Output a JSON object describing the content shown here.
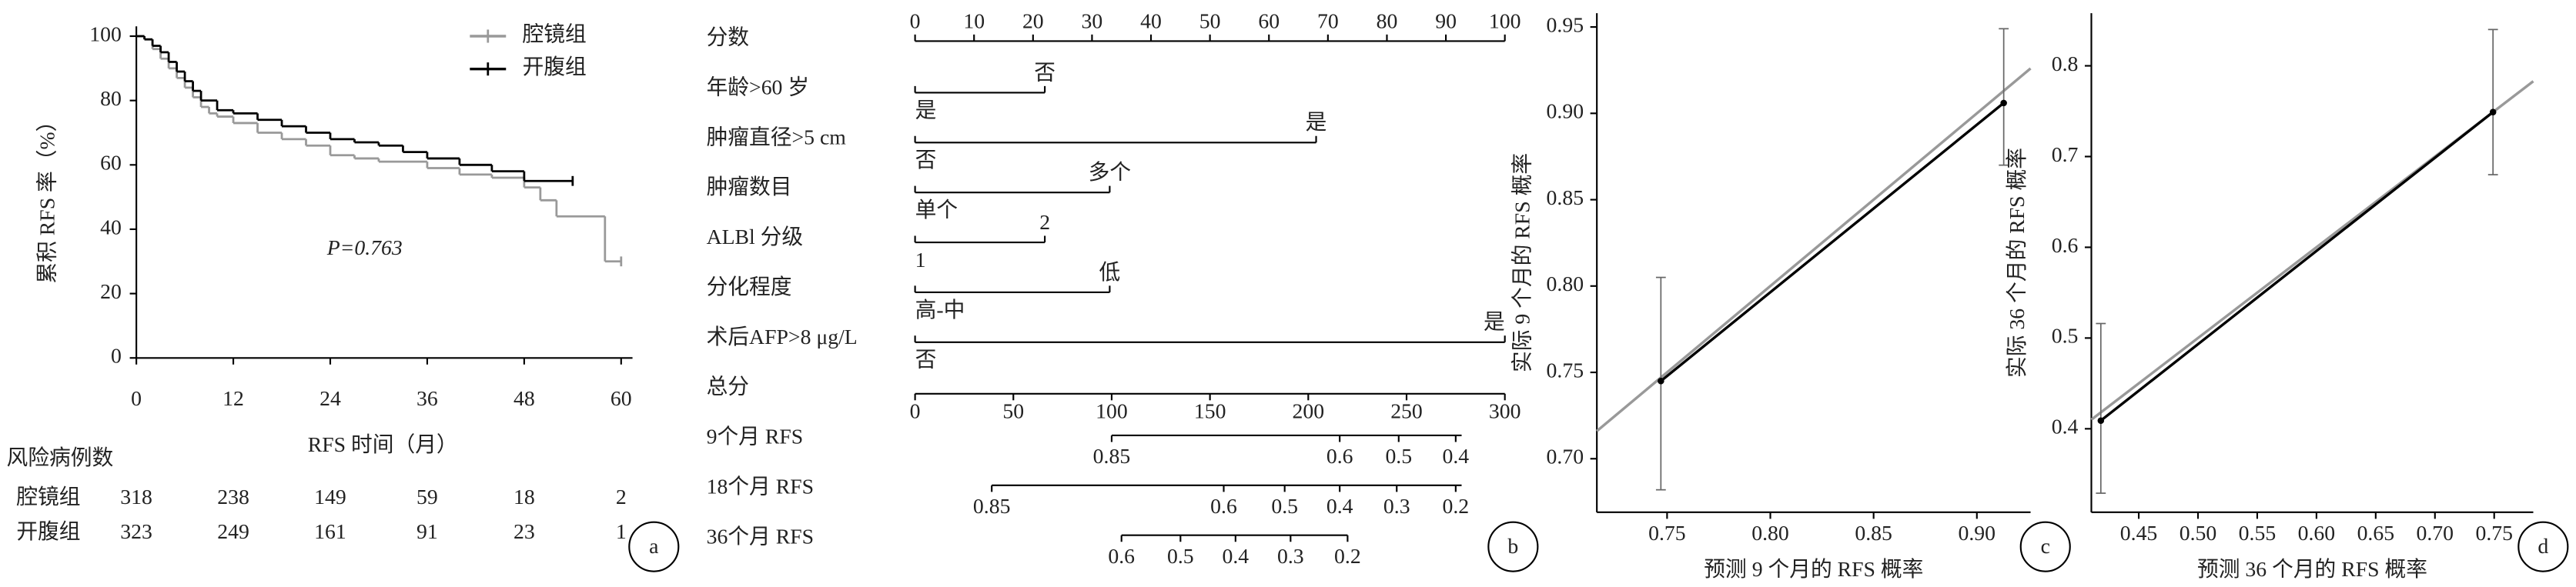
{
  "chart_data": [
    {
      "type": "km",
      "panel_label": "a",
      "x_label": "RFS 时间（月）",
      "y_label": "累积 RFS 率（%）",
      "annotation": "P=0.763",
      "xlim": [
        0,
        61
      ],
      "ylim": [
        0,
        100
      ],
      "xticks": [
        0,
        12,
        24,
        36,
        48,
        60
      ],
      "yticks": [
        0,
        20,
        40,
        60,
        80,
        100
      ],
      "series": [
        {
          "name": "腔镜组",
          "color": "#999999",
          "x": [
            0,
            1,
            2,
            3,
            4,
            5,
            6,
            7,
            8,
            9,
            10,
            12,
            15,
            18,
            21,
            24,
            27,
            30,
            36,
            40,
            44,
            48,
            50,
            52,
            58,
            60
          ],
          "values": [
            100,
            99,
            96,
            93,
            90,
            87,
            84,
            81,
            78,
            76,
            75,
            73,
            70,
            68,
            66,
            63,
            62,
            61,
            59,
            57,
            56,
            53,
            49,
            44,
            30,
            30
          ]
        },
        {
          "name": "开腹组",
          "color": "#000000",
          "x": [
            0,
            1,
            2,
            3,
            4,
            5,
            6,
            7,
            8,
            10,
            12,
            15,
            18,
            21,
            24,
            27,
            30,
            33,
            36,
            40,
            44,
            48,
            54
          ],
          "values": [
            100,
            99,
            97,
            95,
            92,
            89,
            86,
            83,
            80,
            77,
            76,
            74,
            72,
            70,
            68,
            67,
            66,
            64,
            62,
            60,
            58,
            55,
            55
          ]
        }
      ],
      "risk_table": {
        "title": "风险病例数",
        "rows": [
          {
            "name": "腔镜组",
            "values": [
              318,
              238,
              149,
              59,
              18,
              2
            ]
          },
          {
            "name": "开腹组",
            "values": [
              323,
              249,
              161,
              91,
              23,
              1
            ]
          }
        ]
      }
    },
    {
      "type": "nomogram",
      "panel_label": "b",
      "points_axis": {
        "label": "分数",
        "lim": [
          0,
          100
        ],
        "ticks": [
          0,
          10,
          20,
          30,
          40,
          50,
          60,
          70,
          80,
          90,
          100
        ]
      },
      "factors": [
        {
          "label": "年龄>60 岁",
          "ticks": [
            {
              "value": 0,
              "label": "是"
            },
            {
              "value": 22,
              "label": "否"
            }
          ]
        },
        {
          "label": "肿瘤直径>5 cm",
          "ticks": [
            {
              "value": 0,
              "label": "否"
            },
            {
              "value": 68,
              "label": "是"
            }
          ]
        },
        {
          "label": "肿瘤数目",
          "ticks": [
            {
              "value": 0,
              "label": "单个"
            },
            {
              "value": 33,
              "label": "多个"
            }
          ]
        },
        {
          "label": "ALBl 分级",
          "ticks": [
            {
              "value": 0,
              "label": "1"
            },
            {
              "value": 22,
              "label": "2"
            }
          ]
        },
        {
          "label": "分化程度",
          "ticks": [
            {
              "value": 0,
              "label": "高-中"
            },
            {
              "value": 33,
              "label": "低"
            }
          ]
        },
        {
          "label": "术后AFP>8 μg/L",
          "ticks": [
            {
              "value": 0,
              "label": "否"
            },
            {
              "value": 100,
              "label": "是"
            }
          ]
        }
      ],
      "total_axis": {
        "label": "总分",
        "lim": [
          0,
          300
        ],
        "ticks": [
          0,
          50,
          100,
          150,
          200,
          250,
          300
        ]
      },
      "outcomes": [
        {
          "label": "9个月 RFS",
          "range": [
            100,
            278
          ],
          "ticks": [
            {
              "value": 0.85,
              "points": 100
            },
            {
              "value": 0.6,
              "points": 216
            },
            {
              "value": 0.5,
              "points": 246
            },
            {
              "value": 0.4,
              "points": 275
            }
          ]
        },
        {
          "label": "18个月 RFS",
          "range": [
            39,
            278
          ],
          "ticks": [
            {
              "value": 0.85,
              "points": 39
            },
            {
              "value": 0.6,
              "points": 157
            },
            {
              "value": 0.5,
              "points": 188
            },
            {
              "value": 0.4,
              "points": 216
            },
            {
              "value": 0.3,
              "points": 245
            },
            {
              "value": 0.2,
              "points": 275
            }
          ]
        },
        {
          "label": "36个月 RFS",
          "range": [
            105,
            220
          ],
          "ticks": [
            {
              "value": 0.6,
              "points": 105
            },
            {
              "value": 0.5,
              "points": 135
            },
            {
              "value": 0.4,
              "points": 163
            },
            {
              "value": 0.3,
              "points": 191
            },
            {
              "value": 0.2,
              "points": 220
            }
          ]
        }
      ]
    },
    {
      "type": "calibration",
      "panel_label": "c",
      "x_label": "预测 9 个月的 RFS 概率",
      "y_label": "实际 9 个月的 RFS 概率",
      "xlim": [
        0.716,
        0.926
      ],
      "ylim": [
        0.669,
        0.958
      ],
      "xticks": [
        0.75,
        {
          "value": 0.8,
          "label": "0.80"
        },
        0.85,
        {
          "value": 0.9,
          "label": "0.90"
        }
      ],
      "yticks": [
        {
          "value": 0.7,
          "label": "0.70"
        },
        0.75,
        {
          "value": 0.8,
          "label": "0.80"
        },
        0.85,
        {
          "value": 0.9,
          "label": "0.90"
        },
        0.95
      ],
      "diagonal": true,
      "diagonal_color": "#999999",
      "series": [
        {
          "color": "#000000",
          "x": [
            0.747,
            0.913
          ],
          "values": [
            0.745,
            0.906
          ],
          "error_low": [
            0.682,
            0.87
          ],
          "error_high": [
            0.805,
            0.949
          ]
        }
      ]
    },
    {
      "type": "calibration",
      "panel_label": "d",
      "x_label": "预测 36 个月的 RFS 概率",
      "y_label": "实际 36 个月的 RFS 概率",
      "xlim": [
        0.41,
        0.783
      ],
      "ylim": [
        0.308,
        0.858
      ],
      "xticks": [
        0.45,
        {
          "value": 0.5,
          "label": "0.50"
        },
        0.55,
        {
          "value": 0.6,
          "label": "0.60"
        },
        0.65,
        {
          "value": 0.7,
          "label": "0.70"
        },
        0.75
      ],
      "yticks": [
        0.4,
        0.5,
        0.6,
        0.7,
        0.8
      ],
      "diagonal": true,
      "diagonal_color": "#999999",
      "series": [
        {
          "color": "#000000",
          "x": [
            0.418,
            0.749
          ],
          "values": [
            0.409,
            0.749
          ],
          "error_low": [
            0.329,
            0.68
          ],
          "error_high": [
            0.516,
            0.84
          ]
        }
      ]
    }
  ]
}
